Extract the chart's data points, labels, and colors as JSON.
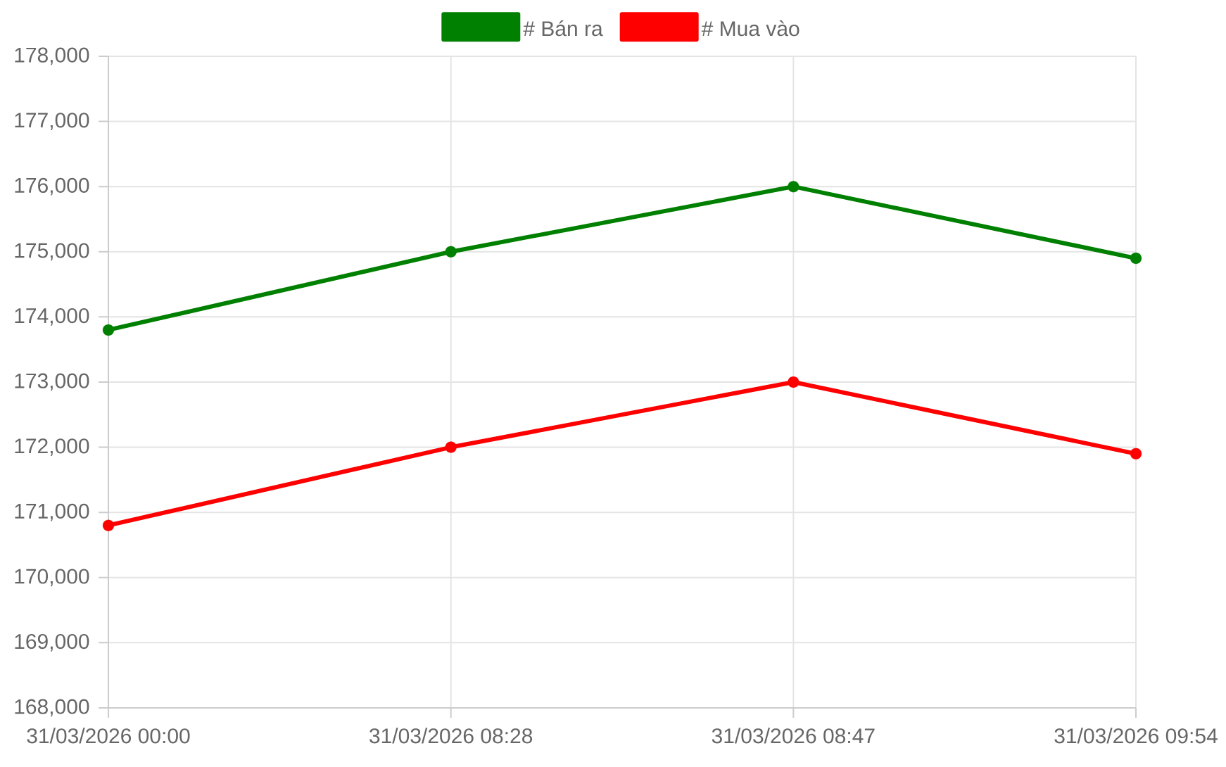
{
  "chart_data": {
    "type": "line",
    "categories": [
      "31/03/2026 00:00",
      "31/03/2026 08:28",
      "31/03/2026 08:47",
      "31/03/2026 09:54"
    ],
    "series": [
      {
        "name": "# Bán ra",
        "color": "#008000",
        "values": [
          173800,
          175000,
          176000,
          174900
        ]
      },
      {
        "name": "# Mua vào",
        "color": "#ff0000",
        "values": [
          170800,
          172000,
          173000,
          171900
        ]
      }
    ],
    "ylim": [
      168000,
      178000
    ],
    "yticks": [
      {
        "value": 168000,
        "label": "168,000"
      },
      {
        "value": 169000,
        "label": "169,000"
      },
      {
        "value": 170000,
        "label": "170,000"
      },
      {
        "value": 171000,
        "label": "171,000"
      },
      {
        "value": 172000,
        "label": "172,000"
      },
      {
        "value": 173000,
        "label": "173,000"
      },
      {
        "value": 174000,
        "label": "174,000"
      },
      {
        "value": 175000,
        "label": "175,000"
      },
      {
        "value": 176000,
        "label": "176,000"
      },
      {
        "value": 177000,
        "label": "177,000"
      },
      {
        "value": 178000,
        "label": "178,000"
      }
    ],
    "grid": true,
    "legend": "top",
    "marker": "circle",
    "line_style": "solid"
  }
}
